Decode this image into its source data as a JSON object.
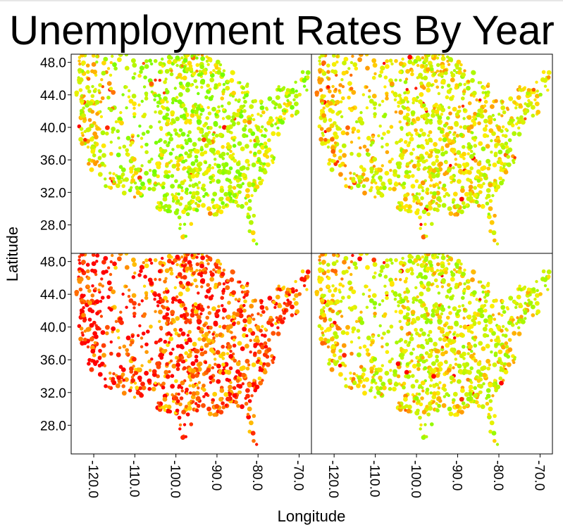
{
  "chart_data": {
    "type": "scatter",
    "title": "Unemployment Rates By Year",
    "xlabel": "Longitude",
    "ylabel": "Latitude",
    "xlim": [
      -125.5,
      -67.0
    ],
    "ylim": [
      24.5,
      49.0
    ],
    "x_ticks": [
      "-120.0",
      "-110.0",
      "-100.0",
      "-90.0",
      "-80.0",
      "-70.0"
    ],
    "x_tick_values": [
      -120,
      -110,
      -100,
      -90,
      -80,
      -70
    ],
    "y_ticks": [
      "28.0",
      "32.0",
      "36.0",
      "40.0",
      "44.0",
      "48.0"
    ],
    "y_tick_values": [
      28,
      32,
      36,
      40,
      44,
      48
    ],
    "grid": false,
    "legend": "none",
    "color_scale": {
      "low": "#6aff00",
      "mid": "#ffee00",
      "high": "#ff0000"
    },
    "panels": [
      {
        "position": "top-left",
        "level": 0.3
      },
      {
        "position": "top-right",
        "level": 0.42
      },
      {
        "position": "bottom-left",
        "level": 0.8
      },
      {
        "position": "bottom-right",
        "level": 0.4
      }
    ]
  }
}
